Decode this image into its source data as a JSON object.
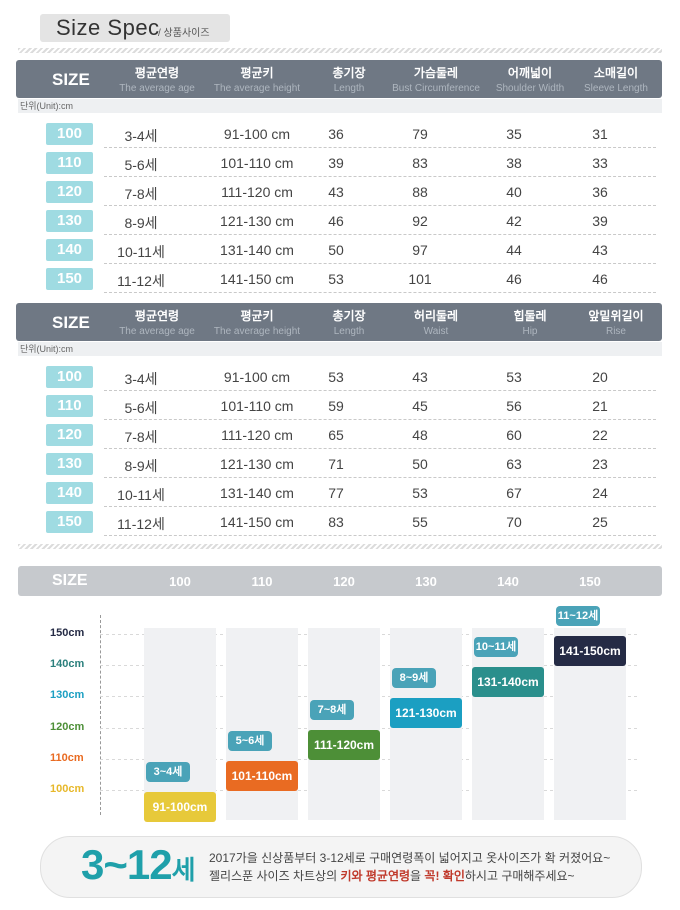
{
  "title": {
    "main": "Size Spec",
    "sub": "/ 상품사이즈"
  },
  "unit_label": "단위(Unit):cm",
  "table1": {
    "size_label": "SIZE",
    "columns": [
      {
        "ko": "평균연령",
        "en": "The average age"
      },
      {
        "ko": "평균키",
        "en": "The average height"
      },
      {
        "ko": "총기장",
        "en": "Length"
      },
      {
        "ko": "가슴둘레",
        "en": "Bust Circumference"
      },
      {
        "ko": "어깨넓이",
        "en": "Shoulder Width"
      },
      {
        "ko": "소매길이",
        "en": "Sleeve Length"
      }
    ],
    "rows": [
      {
        "size": "100",
        "age": "3-4세",
        "height": "91-100 cm",
        "c1": "36",
        "c2": "79",
        "c3": "35",
        "c4": "31"
      },
      {
        "size": "110",
        "age": "5-6세",
        "height": "101-110 cm",
        "c1": "39",
        "c2": "83",
        "c3": "38",
        "c4": "33"
      },
      {
        "size": "120",
        "age": "7-8세",
        "height": "111-120 cm",
        "c1": "43",
        "c2": "88",
        "c3": "40",
        "c4": "36"
      },
      {
        "size": "130",
        "age": "8-9세",
        "height": "121-130 cm",
        "c1": "46",
        "c2": "92",
        "c3": "42",
        "c4": "39"
      },
      {
        "size": "140",
        "age": "10-11세",
        "height": "131-140 cm",
        "c1": "50",
        "c2": "97",
        "c3": "44",
        "c4": "43"
      },
      {
        "size": "150",
        "age": "11-12세",
        "height": "141-150 cm",
        "c1": "53",
        "c2": "101",
        "c3": "46",
        "c4": "46"
      }
    ]
  },
  "table2": {
    "size_label": "SIZE",
    "columns": [
      {
        "ko": "평균연령",
        "en": "The average age"
      },
      {
        "ko": "평균키",
        "en": "The average height"
      },
      {
        "ko": "총기장",
        "en": "Length"
      },
      {
        "ko": "허리둘레",
        "en": "Waist"
      },
      {
        "ko": "힙둘레",
        "en": "Hip"
      },
      {
        "ko": "앞밑위길이",
        "en": "Rise"
      }
    ],
    "rows": [
      {
        "size": "100",
        "age": "3-4세",
        "height": "91-100 cm",
        "c1": "53",
        "c2": "43",
        "c3": "53",
        "c4": "20"
      },
      {
        "size": "110",
        "age": "5-6세",
        "height": "101-110 cm",
        "c1": "59",
        "c2": "45",
        "c3": "56",
        "c4": "21"
      },
      {
        "size": "120",
        "age": "7-8세",
        "height": "111-120 cm",
        "c1": "65",
        "c2": "48",
        "c3": "60",
        "c4": "22"
      },
      {
        "size": "130",
        "age": "8-9세",
        "height": "121-130 cm",
        "c1": "71",
        "c2": "50",
        "c3": "63",
        "c4": "23"
      },
      {
        "size": "140",
        "age": "10-11세",
        "height": "131-140 cm",
        "c1": "77",
        "c2": "53",
        "c3": "67",
        "c4": "24"
      },
      {
        "size": "150",
        "age": "11-12세",
        "height": "141-150 cm",
        "c1": "83",
        "c2": "55",
        "c3": "70",
        "c4": "25"
      }
    ]
  },
  "chart_data": {
    "type": "bar",
    "size_label": "SIZE",
    "categories": [
      "100",
      "110",
      "120",
      "130",
      "140",
      "150"
    ],
    "y_ticks": [
      "150cm",
      "140cm",
      "130cm",
      "120cm",
      "110cm",
      "100cm"
    ],
    "ylim": [
      100,
      150
    ],
    "items": [
      {
        "size": "100",
        "age": "3~4세",
        "range": "91-100cm",
        "top": 100,
        "color": "#e7c93a",
        "tick_color": "#e7b82a"
      },
      {
        "size": "110",
        "age": "5~6세",
        "range": "101-110cm",
        "top": 110,
        "color": "#e96b22",
        "tick_color": "#e96b22"
      },
      {
        "size": "120",
        "age": "7~8세",
        "range": "111-120cm",
        "top": 120,
        "color": "#4d8f37",
        "tick_color": "#4d8f37"
      },
      {
        "size": "130",
        "age": "8~9세",
        "range": "121-130cm",
        "top": 130,
        "color": "#1b9fc2",
        "tick_color": "#1b9fc2"
      },
      {
        "size": "140",
        "age": "10~11세",
        "range": "131-140cm",
        "top": 140,
        "color": "#2a8f8c",
        "tick_color": "#2a7f7c"
      },
      {
        "size": "150",
        "age": "11~12세",
        "range": "141-150cm",
        "top": 150,
        "color": "#252b45",
        "tick_color": "#252b45"
      }
    ],
    "bubble_color": "#4aa3b8"
  },
  "footer": {
    "big_num": "3~12",
    "big_suffix": "세",
    "line1": "2017가을 신상품부터 3-12세로 구매연령폭이 넓어지고 옷사이즈가 확 커졌어요~",
    "line2_pre": "젤리스푼 사이즈 차트상의 ",
    "line2_hl1": "키와 평균연령",
    "line2_mid": "을 ",
    "line2_hl2": "꼭! 확인",
    "line2_post": "하시고 구매해주세요~"
  }
}
